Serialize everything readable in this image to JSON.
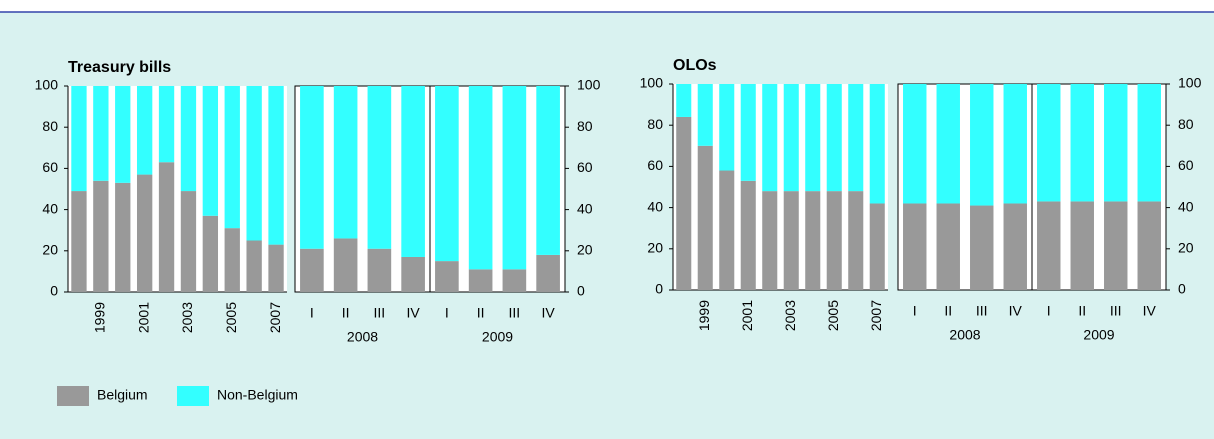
{
  "chart_data": [
    {
      "type": "stacked-bar",
      "title": "Treasury bills",
      "categories": [
        null,
        "1999",
        null,
        "2001",
        null,
        "2003",
        null,
        "2005",
        null,
        "2007",
        "I",
        "II",
        "III",
        "IV",
        "I",
        "II",
        "III",
        "IV"
      ],
      "quarter_groups": [
        "2008",
        "2009"
      ],
      "series": [
        {
          "name": "Belgium",
          "color": "#999999",
          "values": [
            49,
            54,
            53,
            57,
            63,
            49,
            37,
            31,
            25,
            23,
            21,
            26,
            21,
            17,
            15,
            11,
            11,
            18
          ]
        },
        {
          "name": "Non-Belgium",
          "color": "#33ffff",
          "values": [
            51,
            46,
            47,
            43,
            37,
            51,
            63,
            69,
            75,
            77,
            79,
            74,
            79,
            83,
            85,
            89,
            89,
            82
          ]
        }
      ],
      "ylim": [
        0,
        100
      ],
      "yticks": [
        0,
        20,
        40,
        60,
        80,
        100
      ],
      "y2lim": [
        0,
        100
      ],
      "y2ticks": [
        0,
        20,
        40,
        60,
        80,
        100
      ]
    },
    {
      "type": "stacked-bar",
      "title": "OLOs",
      "categories": [
        null,
        "1999",
        null,
        "2001",
        null,
        "2003",
        null,
        "2005",
        null,
        "2007",
        "I",
        "II",
        "III",
        "IV",
        "I",
        "II",
        "III",
        "IV"
      ],
      "quarter_groups": [
        "2008",
        "2009"
      ],
      "series": [
        {
          "name": "Belgium",
          "color": "#999999",
          "values": [
            84,
            70,
            58,
            53,
            48,
            48,
            48,
            48,
            48,
            42,
            42,
            42,
            41,
            42,
            43,
            43,
            43,
            43
          ]
        },
        {
          "name": "Non-Belgium",
          "color": "#33ffff",
          "values": [
            16,
            30,
            42,
            47,
            52,
            52,
            52,
            52,
            52,
            58,
            58,
            58,
            59,
            58,
            57,
            57,
            57,
            57
          ]
        }
      ],
      "ylim": [
        0,
        100
      ],
      "yticks": [
        0,
        20,
        40,
        60,
        80,
        100
      ],
      "y2lim": [
        0,
        100
      ],
      "y2ticks": [
        0,
        20,
        40,
        60,
        80,
        100
      ]
    }
  ]
}
